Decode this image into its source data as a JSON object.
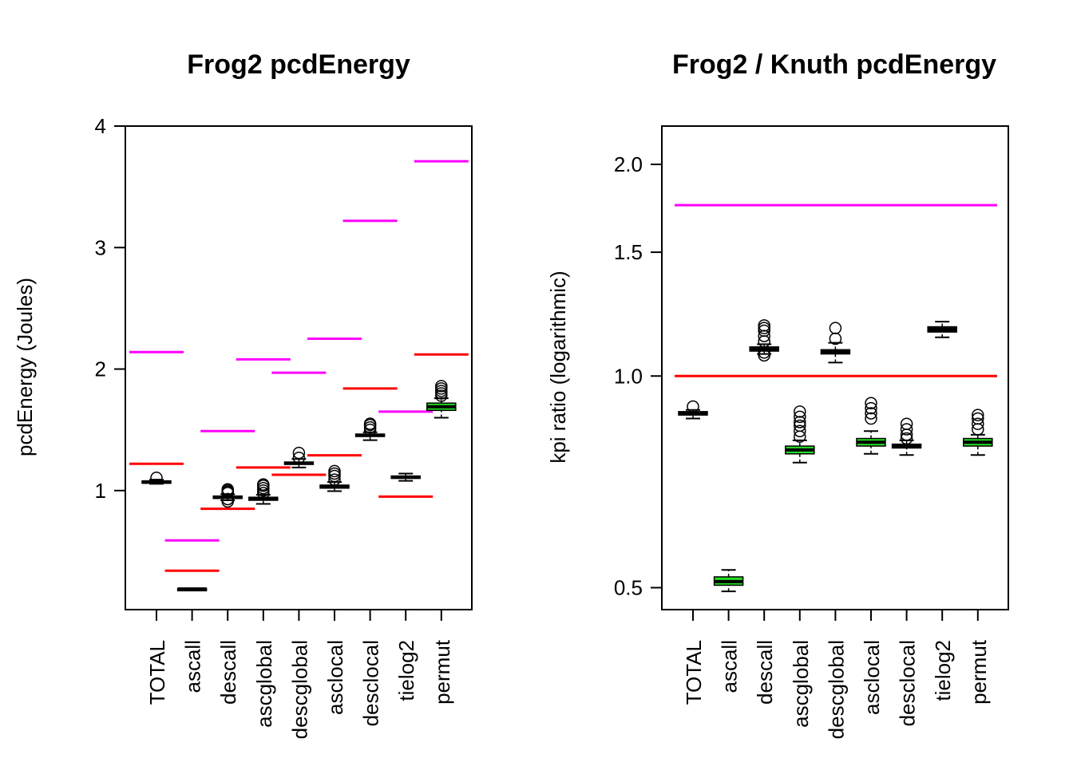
{
  "chart_data": [
    {
      "type": "boxplot",
      "title": "Frog2 pcdEnergy",
      "xlabel": "",
      "ylabel": "pcdEnergy (Joules)",
      "ylim": [
        0.0,
        4.0
      ],
      "y_ticks": [
        1,
        2,
        3,
        4
      ],
      "y_tick_labels": [
        "1",
        "2",
        "3",
        "4"
      ],
      "log_scale": false,
      "categories": [
        "TOTAL",
        "ascall",
        "descall",
        "ascglobal",
        "descglobal",
        "asclocal",
        "desclocal",
        "tielog2",
        "permut"
      ],
      "boxes": [
        {
          "q1": 1.06,
          "median": 1.07,
          "q3": 1.08,
          "wlo": 1.055,
          "whi": 1.09,
          "outliers": [
            1.105
          ],
          "fill": "#000000"
        },
        {
          "q1": 0.185,
          "median": 0.19,
          "q3": 0.195,
          "wlo": 0.185,
          "whi": 0.195,
          "outliers": [],
          "fill": "#000000"
        },
        {
          "q1": 0.935,
          "median": 0.945,
          "q3": 0.955,
          "wlo": 0.92,
          "whi": 0.97,
          "outliers": [
            0.91,
            0.93,
            0.98,
            0.99,
            1.0,
            1.01
          ],
          "fill": "#000000"
        },
        {
          "q1": 0.92,
          "median": 0.93,
          "q3": 0.945,
          "wlo": 0.89,
          "whi": 0.965,
          "outliers": [
            0.98,
            1.0,
            1.02,
            1.04,
            1.05
          ],
          "fill": "#000000"
        },
        {
          "q1": 1.215,
          "median": 1.225,
          "q3": 1.235,
          "wlo": 1.19,
          "whi": 1.26,
          "outliers": [
            1.27,
            1.31
          ],
          "fill": "#000000"
        },
        {
          "q1": 1.02,
          "median": 1.03,
          "q3": 1.045,
          "wlo": 0.995,
          "whi": 1.07,
          "outliers": [
            1.09,
            1.12,
            1.14,
            1.16
          ],
          "fill": "#000000"
        },
        {
          "q1": 1.445,
          "median": 1.455,
          "q3": 1.465,
          "wlo": 1.415,
          "whi": 1.48,
          "outliers": [
            1.5,
            1.52,
            1.54,
            1.55
          ],
          "fill": "#000000"
        },
        {
          "q1": 1.1,
          "median": 1.11,
          "q3": 1.12,
          "wlo": 1.08,
          "whi": 1.14,
          "outliers": [],
          "fill": "#000000"
        },
        {
          "q1": 1.66,
          "median": 1.69,
          "q3": 1.72,
          "wlo": 1.6,
          "whi": 1.76,
          "outliers": [
            1.78,
            1.8,
            1.82,
            1.84,
            1.86
          ],
          "fill": "#22dd22"
        }
      ],
      "reference_lines": [
        {
          "color": "#ff0000",
          "values": [
            1.22,
            0.34,
            0.85,
            1.19,
            1.13,
            1.29,
            1.84,
            0.95,
            2.12
          ]
        },
        {
          "color": "#ff00ff",
          "values": [
            2.14,
            0.59,
            1.49,
            2.08,
            1.97,
            2.25,
            3.22,
            1.65,
            3.71
          ]
        }
      ]
    },
    {
      "type": "boxplot",
      "title": "Frog2 / Knuth pcdEnergy",
      "xlabel": "",
      "ylabel": "kpi ratio (logarithmic)",
      "ylim": [
        0.48,
        2.2
      ],
      "y_ticks": [
        0.5,
        1.0,
        1.5,
        2.0
      ],
      "y_tick_labels": [
        "0.5",
        "1.0",
        "1.5",
        "2.0"
      ],
      "log_scale": true,
      "categories": [
        "TOTAL",
        "ascall",
        "descall",
        "ascglobal",
        "descglobal",
        "asclocal",
        "desclocal",
        "tielog2",
        "permut"
      ],
      "boxes": [
        {
          "q1": 0.88,
          "median": 0.885,
          "q3": 0.89,
          "wlo": 0.87,
          "whi": 0.895,
          "outliers": [
            0.905
          ],
          "fill": "#000000"
        },
        {
          "q1": 0.504,
          "median": 0.51,
          "q3": 0.518,
          "wlo": 0.494,
          "whi": 0.53,
          "outliers": [],
          "fill": "#22dd22"
        },
        {
          "q1": 1.085,
          "median": 1.095,
          "q3": 1.1,
          "wlo": 1.075,
          "whi": 1.11,
          "outliers": [
            1.07,
            1.08,
            1.12,
            1.14,
            1.16,
            1.17,
            1.18
          ],
          "fill": "#000000"
        },
        {
          "q1": 0.775,
          "median": 0.785,
          "q3": 0.795,
          "wlo": 0.753,
          "whi": 0.81,
          "outliers": [
            0.82,
            0.835,
            0.85,
            0.86,
            0.875,
            0.89
          ],
          "fill": "#22dd22"
        },
        {
          "q1": 1.075,
          "median": 1.08,
          "q3": 1.09,
          "wlo": 1.045,
          "whi": 1.115,
          "outliers": [
            1.13,
            1.17
          ],
          "fill": "#000000"
        },
        {
          "q1": 0.795,
          "median": 0.805,
          "q3": 0.815,
          "wlo": 0.775,
          "whi": 0.835,
          "outliers": [
            0.87,
            0.885,
            0.9,
            0.915
          ],
          "fill": "#22dd22"
        },
        {
          "q1": 0.79,
          "median": 0.795,
          "q3": 0.8,
          "wlo": 0.772,
          "whi": 0.81,
          "outliers": [
            0.815,
            0.825,
            0.84,
            0.855
          ],
          "fill": "#000000"
        },
        {
          "q1": 1.155,
          "median": 1.165,
          "q3": 1.175,
          "wlo": 1.135,
          "whi": 1.195,
          "outliers": [],
          "fill": "#000000"
        },
        {
          "q1": 0.795,
          "median": 0.805,
          "q3": 0.815,
          "wlo": 0.772,
          "whi": 0.825,
          "outliers": [
            0.84,
            0.855,
            0.87,
            0.88
          ],
          "fill": "#22dd22"
        }
      ],
      "reference_lines_full": [
        {
          "color": "#ff00ff",
          "value": 1.75
        },
        {
          "color": "#ff0000",
          "value": 1.0
        }
      ]
    }
  ]
}
